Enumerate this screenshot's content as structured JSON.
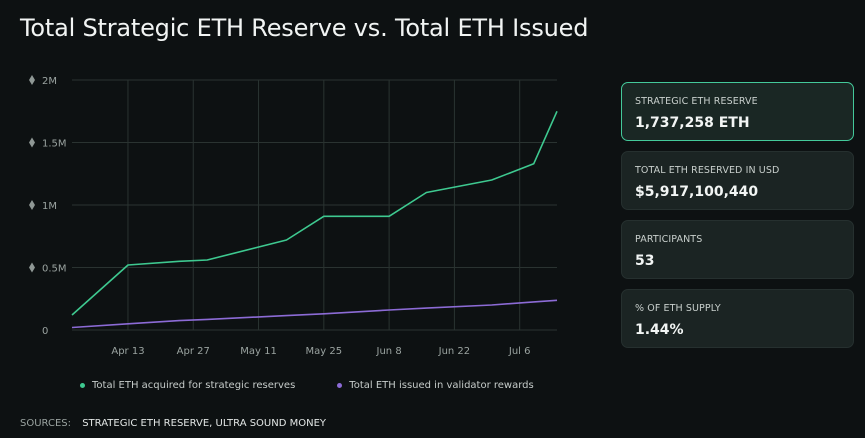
{
  "title": "Total Strategic ETH Reserve vs. Total ETH Issued",
  "colors": {
    "reserve_line": "#3ec990",
    "issued_line": "#8c6bd6",
    "grid": "#2a3331",
    "background": "#0d1112"
  },
  "chart_data": {
    "type": "line",
    "x": [
      "Apr 1",
      "Apr 13",
      "Apr 24",
      "Apr 30",
      "May 17",
      "May 25",
      "Jun 8",
      "Jun 16",
      "Jun 30",
      "Jul 9",
      "Jul 14"
    ],
    "series": [
      {
        "name": "Total ETH acquired for strategic reserves",
        "values": [
          120000,
          520000,
          550000,
          560000,
          720000,
          910000,
          910000,
          1100000,
          1200000,
          1330000,
          1750000
        ]
      },
      {
        "name": "Total ETH issued in validator rewards",
        "values": [
          20000,
          50000,
          75000,
          85000,
          115000,
          130000,
          160000,
          175000,
          200000,
          225000,
          238000
        ]
      }
    ],
    "x_ticks": [
      "Apr 13",
      "Apr 27",
      "May 11",
      "May 25",
      "Jun 8",
      "Jun 22",
      "Jul 6"
    ],
    "y_ticks": [
      "0",
      "0.5M",
      "1M",
      "1.5M",
      "2M"
    ],
    "ylim": [
      0,
      2000000
    ],
    "grid": true,
    "legend_position": "bottom"
  },
  "cards": [
    {
      "label": "STRATEGIC ETH RESERVE",
      "value": "1,737,258 ETH"
    },
    {
      "label": "TOTAL ETH RESERVED IN USD",
      "value": "$5,917,100,440"
    },
    {
      "label": "PARTICIPANTS",
      "value": "53"
    },
    {
      "label": "% OF ETH SUPPLY",
      "value": "1.44%"
    }
  ],
  "sources": {
    "label": "SOURCES:",
    "value": "STRATEGIC ETH RESERVE, ULTRA SOUND MONEY"
  }
}
